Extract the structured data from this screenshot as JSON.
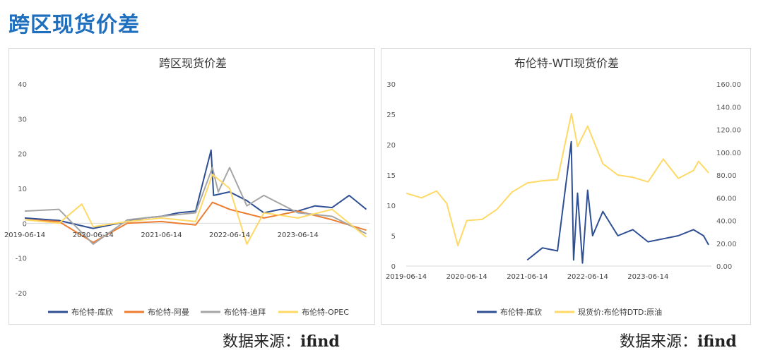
{
  "page": {
    "title": "跨区现货价差"
  },
  "sources": [
    {
      "label": "数据来源：",
      "name": "ifind"
    },
    {
      "label": "数据来源：",
      "name": "ifind"
    }
  ],
  "chart_data": [
    {
      "type": "line",
      "title": "跨区现货价差",
      "xlabel": "",
      "ylabel": "",
      "ylim": [
        -20,
        40
      ],
      "y_ticks": [
        "40",
        "30",
        "20",
        "10",
        "0",
        "-10",
        "-20"
      ],
      "x_ticks": [
        "2019-06-14",
        "2020-06-14",
        "2021-06-14",
        "2022-06-14",
        "2023-06-14"
      ],
      "legend_position": "bottom",
      "grid": false,
      "series": [
        {
          "name": "布伦特-库欣",
          "color": "#2f4f95",
          "x": [
            "2019-06-14",
            "2019-12-14",
            "2020-06-14",
            "2020-12-14",
            "2021-03-14",
            "2021-06-14",
            "2021-09-14",
            "2021-12-14",
            "2022-03-07",
            "2022-03-20",
            "2022-06-14",
            "2022-09-14",
            "2022-12-14",
            "2023-03-14",
            "2023-06-14",
            "2023-09-14",
            "2023-12-14",
            "2024-03-14",
            "2024-06-14"
          ],
          "values": [
            1.5,
            0.8,
            -1.5,
            0.5,
            1.5,
            2.0,
            3.0,
            3.5,
            21.0,
            8.0,
            9.0,
            6.5,
            3.0,
            4.0,
            3.5,
            5.0,
            4.5,
            8.0,
            4.0
          ]
        },
        {
          "name": "布伦特-阿曼",
          "color": "#ed7d31",
          "x": [
            "2019-06-14",
            "2019-12-14",
            "2020-06-14",
            "2020-12-14",
            "2021-06-14",
            "2021-12-14",
            "2022-03-14",
            "2022-06-14",
            "2022-12-14",
            "2023-06-14",
            "2023-12-14",
            "2024-06-14"
          ],
          "values": [
            1.0,
            0.5,
            -5.5,
            0.0,
            0.5,
            -0.5,
            6.0,
            4.0,
            1.5,
            3.5,
            1.0,
            -2.0
          ]
        },
        {
          "name": "布伦特-迪拜",
          "color": "#a5a5a5",
          "x": [
            "2019-06-14",
            "2019-12-14",
            "2020-06-14",
            "2020-12-14",
            "2021-06-14",
            "2021-12-14",
            "2022-03-14",
            "2022-04-14",
            "2022-06-14",
            "2022-09-14",
            "2022-12-14",
            "2023-06-14",
            "2023-12-14",
            "2024-06-14"
          ],
          "values": [
            3.5,
            4.0,
            -6.0,
            1.0,
            2.0,
            3.0,
            16.0,
            9.0,
            16.0,
            5.0,
            8.0,
            3.0,
            2.0,
            -3.0
          ]
        },
        {
          "name": "布伦特-OPEC",
          "color": "#ffd966",
          "x": [
            "2019-06-14",
            "2019-12-14",
            "2020-04-14",
            "2020-06-14",
            "2020-12-14",
            "2021-06-14",
            "2021-12-14",
            "2022-03-14",
            "2022-06-14",
            "2022-09-14",
            "2022-12-14",
            "2023-06-14",
            "2023-12-14",
            "2024-06-14"
          ],
          "values": [
            1.0,
            0.0,
            5.5,
            -1.0,
            0.5,
            1.5,
            0.5,
            14.0,
            10.0,
            -6.0,
            3.0,
            1.5,
            4.0,
            -4.0
          ]
        }
      ]
    },
    {
      "type": "line",
      "title": "布伦特-WTI现货价差",
      "xlabel": "",
      "ylabel": "",
      "ylim": [
        0,
        30
      ],
      "y2lim": [
        0,
        160
      ],
      "y_ticks": [
        "30",
        "25",
        "20",
        "15",
        "10",
        "5",
        "0"
      ],
      "y2_ticks": [
        "160.00",
        "140.00",
        "120.00",
        "100.00",
        "80.00",
        "60.00",
        "40.00",
        "20.00",
        "0.00"
      ],
      "x_ticks": [
        "2019-06-14",
        "2020-06-14",
        "2021-06-14",
        "2022-06-14",
        "2023-06-14"
      ],
      "legend_position": "bottom",
      "grid": false,
      "series": [
        {
          "name": "布伦特-库欣",
          "color": "#2f4f95",
          "axis": "left",
          "x": [
            "2021-06-14",
            "2021-09-14",
            "2021-12-14",
            "2022-03-07",
            "2022-03-21",
            "2022-04-14",
            "2022-05-14",
            "2022-06-14",
            "2022-07-14",
            "2022-09-14",
            "2022-12-14",
            "2023-03-14",
            "2023-06-14",
            "2023-09-14",
            "2023-12-14",
            "2024-03-14",
            "2024-05-14",
            "2024-06-14"
          ],
          "values": [
            1.0,
            3.0,
            2.5,
            20.5,
            1.0,
            12.0,
            0.5,
            12.5,
            5.0,
            9.0,
            5.0,
            6.0,
            4.0,
            4.5,
            5.0,
            6.0,
            5.0,
            3.5
          ]
        },
        {
          "name": "现货价:布伦特DTD:原油",
          "color": "#ffd966",
          "axis": "right",
          "x": [
            "2019-06-14",
            "2019-09-14",
            "2019-12-14",
            "2020-02-14",
            "2020-04-21",
            "2020-06-14",
            "2020-09-14",
            "2020-12-14",
            "2021-03-14",
            "2021-06-14",
            "2021-09-14",
            "2021-12-14",
            "2022-03-08",
            "2022-04-14",
            "2022-06-14",
            "2022-09-14",
            "2022-12-14",
            "2023-03-14",
            "2023-06-14",
            "2023-09-14",
            "2023-12-14",
            "2024-03-14",
            "2024-04-14",
            "2024-06-14"
          ],
          "values": [
            64,
            60,
            66,
            55,
            18,
            40,
            41,
            50,
            65,
            73,
            75,
            76,
            134,
            105,
            123,
            90,
            80,
            78,
            74,
            94,
            77,
            84,
            92,
            82
          ]
        }
      ]
    }
  ]
}
